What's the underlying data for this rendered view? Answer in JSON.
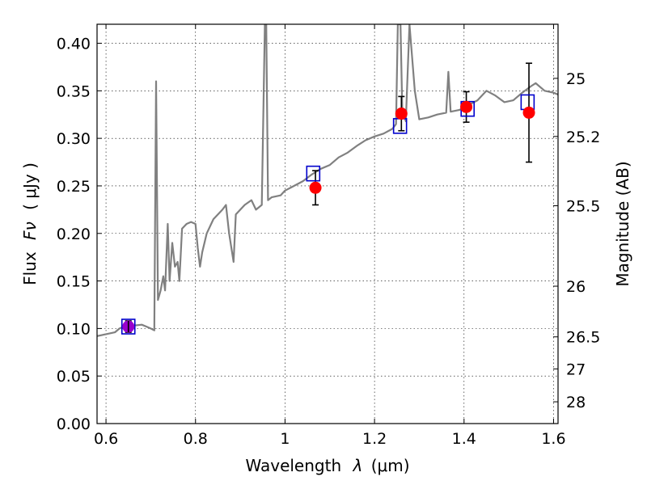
{
  "chart_data": {
    "type": "scatter",
    "xlabel": "Wavelength",
    "xlabel_symbol": "λ",
    "xlabel_unit": "(μm)",
    "ylabel": "Flux",
    "ylabel_symbol": "Fν",
    "ylabel_unit": "( μJy )",
    "y2label": "Magnitude (AB)",
    "xlim": [
      0.58,
      1.61
    ],
    "ylim": [
      0.0,
      0.42
    ],
    "grid": true,
    "x_ticks": [
      0.6,
      0.8,
      1.0,
      1.2,
      1.4,
      1.6
    ],
    "x_tick_labels": [
      "0.6",
      "0.8",
      "1",
      "1.2",
      "1.4",
      "1.6"
    ],
    "y_ticks": [
      0.0,
      0.05,
      0.1,
      0.15,
      0.2,
      0.25,
      0.3,
      0.35,
      0.4
    ],
    "y_tick_labels": [
      "0.00",
      "0.05",
      "0.10",
      "0.15",
      "0.20",
      "0.25",
      "0.30",
      "0.35",
      "0.40"
    ],
    "y2_ticks": [
      {
        "label": "25",
        "flux": 0.3631
      },
      {
        "label": "25.2",
        "flux": 0.302
      },
      {
        "label": "25.5",
        "flux": 0.2291
      },
      {
        "label": "26",
        "flux": 0.1445
      },
      {
        "label": "26.5",
        "flux": 0.0912
      },
      {
        "label": "27",
        "flux": 0.0575
      },
      {
        "label": "28",
        "flux": 0.0229
      }
    ],
    "colors": {
      "model": "#808080",
      "observed": "#ff0000",
      "model_photometry": "#0000cc",
      "errorbar": "#000000",
      "single_point": "#9900cc"
    },
    "observed": [
      {
        "x": 0.65,
        "y": 0.102,
        "err": 0.006
      },
      {
        "x": 1.068,
        "y": 0.248,
        "err": 0.018
      },
      {
        "x": 1.26,
        "y": 0.326,
        "err": 0.018
      },
      {
        "x": 1.405,
        "y": 0.333,
        "err": 0.016
      },
      {
        "x": 1.545,
        "y": 0.327,
        "err": 0.052
      }
    ],
    "model_photometry": [
      {
        "x": 0.65,
        "y": 0.102
      },
      {
        "x": 1.063,
        "y": 0.263
      },
      {
        "x": 1.257,
        "y": 0.313
      },
      {
        "x": 1.408,
        "y": 0.331
      },
      {
        "x": 1.542,
        "y": 0.338
      }
    ],
    "model_spectrum": [
      [
        0.58,
        0.092
      ],
      [
        0.6,
        0.094
      ],
      [
        0.62,
        0.096
      ],
      [
        0.63,
        0.1
      ],
      [
        0.64,
        0.102
      ],
      [
        0.66,
        0.103
      ],
      [
        0.68,
        0.104
      ],
      [
        0.69,
        0.102
      ],
      [
        0.7,
        0.1
      ],
      [
        0.708,
        0.098
      ],
      [
        0.712,
        0.36
      ],
      [
        0.716,
        0.13
      ],
      [
        0.722,
        0.14
      ],
      [
        0.728,
        0.155
      ],
      [
        0.732,
        0.14
      ],
      [
        0.738,
        0.21
      ],
      [
        0.742,
        0.15
      ],
      [
        0.748,
        0.19
      ],
      [
        0.754,
        0.165
      ],
      [
        0.76,
        0.17
      ],
      [
        0.764,
        0.15
      ],
      [
        0.77,
        0.205
      ],
      [
        0.78,
        0.21
      ],
      [
        0.79,
        0.212
      ],
      [
        0.8,
        0.21
      ],
      [
        0.805,
        0.185
      ],
      [
        0.81,
        0.165
      ],
      [
        0.815,
        0.18
      ],
      [
        0.825,
        0.2
      ],
      [
        0.84,
        0.215
      ],
      [
        0.86,
        0.225
      ],
      [
        0.868,
        0.23
      ],
      [
        0.875,
        0.2
      ],
      [
        0.885,
        0.17
      ],
      [
        0.89,
        0.22
      ],
      [
        0.91,
        0.23
      ],
      [
        0.925,
        0.235
      ],
      [
        0.935,
        0.225
      ],
      [
        0.948,
        0.23
      ],
      [
        0.955,
        0.42
      ],
      [
        0.958,
        0.42
      ],
      [
        0.962,
        0.235
      ],
      [
        0.97,
        0.238
      ],
      [
        0.99,
        0.24
      ],
      [
        1.0,
        0.245
      ],
      [
        1.02,
        0.25
      ],
      [
        1.04,
        0.255
      ],
      [
        1.06,
        0.262
      ],
      [
        1.08,
        0.268
      ],
      [
        1.1,
        0.272
      ],
      [
        1.12,
        0.28
      ],
      [
        1.14,
        0.285
      ],
      [
        1.16,
        0.292
      ],
      [
        1.18,
        0.298
      ],
      [
        1.2,
        0.302
      ],
      [
        1.22,
        0.305
      ],
      [
        1.24,
        0.31
      ],
      [
        1.248,
        0.315
      ],
      [
        1.252,
        0.42
      ],
      [
        1.258,
        0.42
      ],
      [
        1.262,
        0.33
      ],
      [
        1.27,
        0.318
      ],
      [
        1.278,
        0.42
      ],
      [
        1.29,
        0.35
      ],
      [
        1.3,
        0.32
      ],
      [
        1.32,
        0.322
      ],
      [
        1.34,
        0.325
      ],
      [
        1.36,
        0.327
      ],
      [
        1.365,
        0.37
      ],
      [
        1.37,
        0.328
      ],
      [
        1.39,
        0.33
      ],
      [
        1.41,
        0.335
      ],
      [
        1.43,
        0.34
      ],
      [
        1.45,
        0.35
      ],
      [
        1.47,
        0.345
      ],
      [
        1.49,
        0.338
      ],
      [
        1.51,
        0.34
      ],
      [
        1.53,
        0.348
      ],
      [
        1.55,
        0.355
      ],
      [
        1.56,
        0.358
      ],
      [
        1.58,
        0.35
      ],
      [
        1.6,
        0.348
      ],
      [
        1.61,
        0.346
      ]
    ]
  }
}
